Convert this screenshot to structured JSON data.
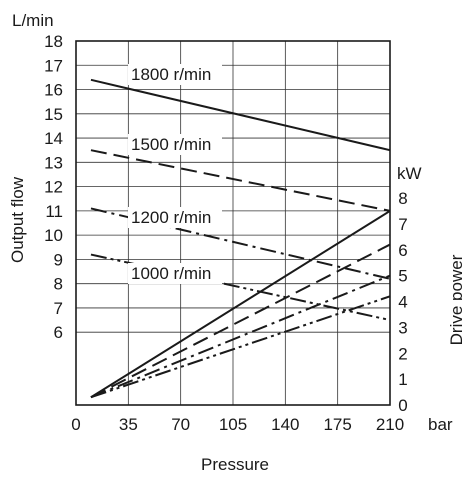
{
  "chart_data": {
    "type": "line",
    "xlabel": "Pressure",
    "x_unit": "bar",
    "xlim": [
      0,
      210
    ],
    "x_ticks": [
      0,
      35,
      70,
      105,
      140,
      175,
      210
    ],
    "y_left": {
      "label": "Output flow",
      "unit": "L/min",
      "lim": [
        3,
        18
      ],
      "ticks": [
        6,
        7,
        8,
        9,
        10,
        11,
        12,
        13,
        14,
        15,
        16,
        17,
        18
      ]
    },
    "y_right": {
      "label": "Drive power",
      "unit": "kW",
      "lim": [
        0,
        8
      ],
      "ticks": [
        0,
        1,
        2,
        3,
        4,
        5,
        6,
        7,
        8
      ]
    },
    "grid": true,
    "flow_series": [
      {
        "name": "1800 r/min",
        "style": "solid",
        "x": [
          10,
          210
        ],
        "y": [
          16.4,
          13.5
        ]
      },
      {
        "name": "1500 r/min",
        "style": "dashed",
        "x": [
          10,
          210
        ],
        "y": [
          13.5,
          11.0
        ]
      },
      {
        "name": "1200 r/min",
        "style": "dashdot",
        "x": [
          10,
          210
        ],
        "y": [
          11.1,
          8.2
        ]
      },
      {
        "name": "1000 r/min",
        "style": "dashdotdot",
        "x": [
          10,
          210
        ],
        "y": [
          9.2,
          6.5
        ]
      }
    ],
    "power_series": [
      {
        "style": "solid",
        "x": [
          10,
          210
        ],
        "y": [
          0.3,
          7.5
        ]
      },
      {
        "style": "dashed",
        "x": [
          10,
          210
        ],
        "y": [
          0.3,
          6.2
        ]
      },
      {
        "style": "dashdot",
        "x": [
          10,
          210
        ],
        "y": [
          0.3,
          5.0
        ]
      },
      {
        "style": "dashdotdot",
        "x": [
          10,
          210
        ],
        "y": [
          0.3,
          4.2
        ]
      }
    ]
  },
  "colors": {
    "line": "#1a1a1a",
    "grid": "#333333"
  }
}
